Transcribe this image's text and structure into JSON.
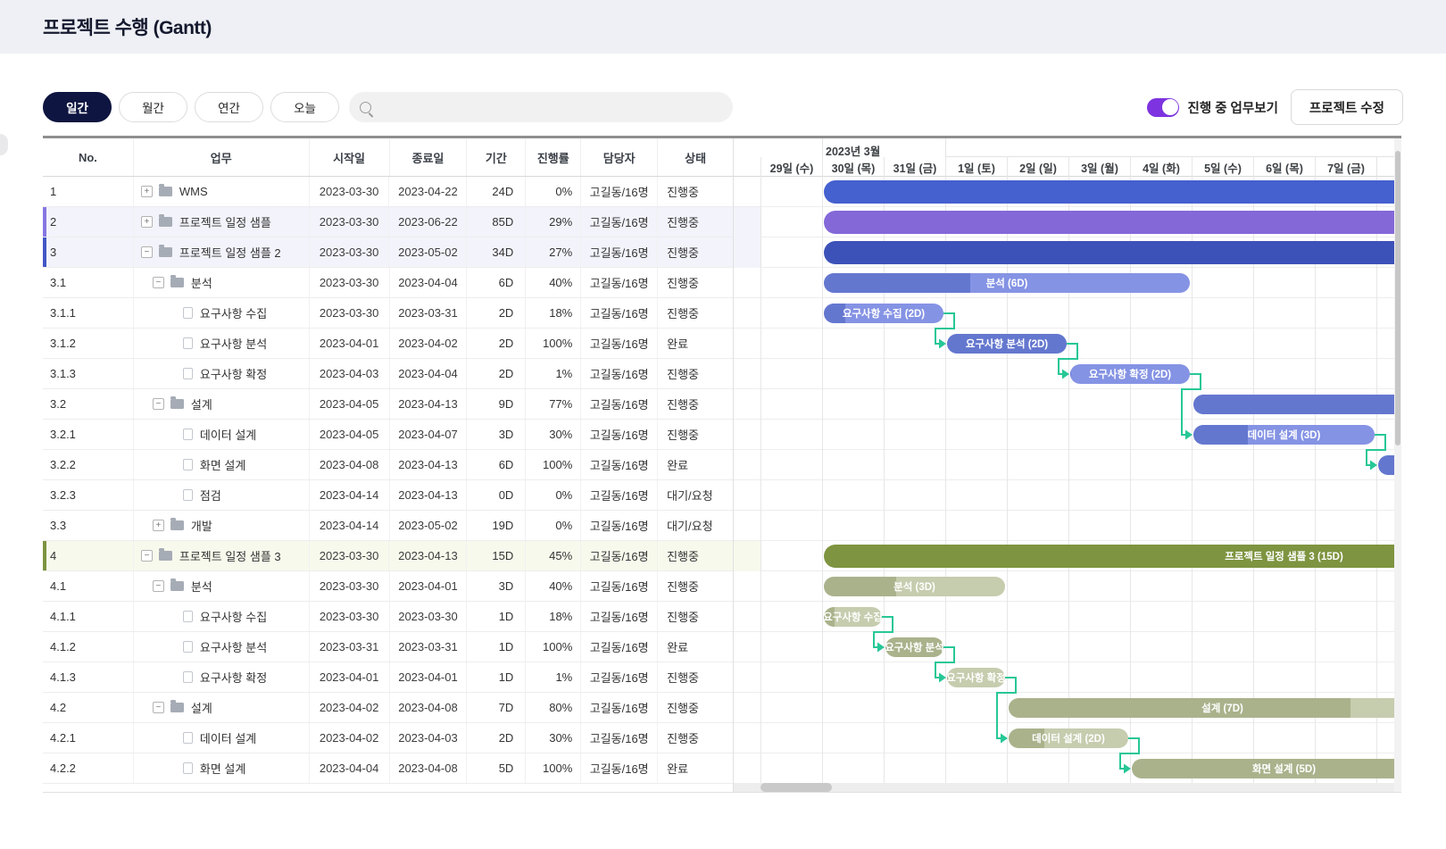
{
  "header": {
    "title": "프로젝트 수행 (Gantt)"
  },
  "toolbar": {
    "view_buttons": [
      {
        "id": "daily",
        "label": "일간",
        "active": true
      },
      {
        "id": "monthly",
        "label": "월간",
        "active": false
      },
      {
        "id": "yearly",
        "label": "연간",
        "active": false
      },
      {
        "id": "today",
        "label": "오늘",
        "active": false
      }
    ],
    "search_value": "",
    "toggle_label": "진행 중 업무보기",
    "toggle_on": true,
    "toggle_color": "#7d33e0",
    "edit_button": "프로젝트 수정"
  },
  "table": {
    "columns": [
      "No.",
      "업무",
      "시작일",
      "종료일",
      "기간",
      "진행률",
      "담당자",
      "상태"
    ],
    "rows": [
      {
        "no": "1",
        "name": "WMS",
        "level": 1,
        "expand": "+",
        "icon": "folder",
        "start": "2023-03-30",
        "end": "2023-04-22",
        "dur": "24D",
        "progress": "0%",
        "assignee": "고길동/16명",
        "status": "진행중",
        "tint": null,
        "accent": null
      },
      {
        "no": "2",
        "name": "프로젝트 일정 샘플",
        "level": 1,
        "expand": "+",
        "icon": "folder",
        "start": "2023-03-30",
        "end": "2023-06-22",
        "dur": "85D",
        "progress": "29%",
        "assignee": "고길동/16명",
        "status": "진행중",
        "tint": "#f3f3fb",
        "accent": "#8677e2"
      },
      {
        "no": "3",
        "name": "프로젝트 일정 샘플 2",
        "level": 1,
        "expand": "-",
        "icon": "folder",
        "start": "2023-03-30",
        "end": "2023-05-02",
        "dur": "34D",
        "progress": "27%",
        "assignee": "고길동/16명",
        "status": "진행중",
        "tint": "#f3f3fb",
        "accent": "#4356c6"
      },
      {
        "no": "3.1",
        "name": "분석",
        "level": 2,
        "expand": "-",
        "icon": "folder",
        "start": "2023-03-30",
        "end": "2023-04-04",
        "dur": "6D",
        "progress": "40%",
        "assignee": "고길동/16명",
        "status": "진행중",
        "tint": null,
        "accent": null
      },
      {
        "no": "3.1.1",
        "name": "요구사항 수집",
        "level": 3,
        "expand": null,
        "icon": "doc",
        "start": "2023-03-30",
        "end": "2023-03-31",
        "dur": "2D",
        "progress": "18%",
        "assignee": "고길동/16명",
        "status": "진행중",
        "tint": null,
        "accent": null
      },
      {
        "no": "3.1.2",
        "name": "요구사항 분석",
        "level": 3,
        "expand": null,
        "icon": "doc",
        "start": "2023-04-01",
        "end": "2023-04-02",
        "dur": "2D",
        "progress": "100%",
        "assignee": "고길동/16명",
        "status": "완료",
        "tint": null,
        "accent": null
      },
      {
        "no": "3.1.3",
        "name": "요구사항 확정",
        "level": 3,
        "expand": null,
        "icon": "doc",
        "start": "2023-04-03",
        "end": "2023-04-04",
        "dur": "2D",
        "progress": "1%",
        "assignee": "고길동/16명",
        "status": "진행중",
        "tint": null,
        "accent": null
      },
      {
        "no": "3.2",
        "name": "설계",
        "level": 2,
        "expand": "-",
        "icon": "folder",
        "start": "2023-04-05",
        "end": "2023-04-13",
        "dur": "9D",
        "progress": "77%",
        "assignee": "고길동/16명",
        "status": "진행중",
        "tint": null,
        "accent": null
      },
      {
        "no": "3.2.1",
        "name": "데이터 설계",
        "level": 3,
        "expand": null,
        "icon": "doc",
        "start": "2023-04-05",
        "end": "2023-04-07",
        "dur": "3D",
        "progress": "30%",
        "assignee": "고길동/16명",
        "status": "진행중",
        "tint": null,
        "accent": null
      },
      {
        "no": "3.2.2",
        "name": "화면 설계",
        "level": 3,
        "expand": null,
        "icon": "doc",
        "start": "2023-04-08",
        "end": "2023-04-13",
        "dur": "6D",
        "progress": "100%",
        "assignee": "고길동/16명",
        "status": "완료",
        "tint": null,
        "accent": null
      },
      {
        "no": "3.2.3",
        "name": "점검",
        "level": 3,
        "expand": null,
        "icon": "doc",
        "start": "2023-04-14",
        "end": "2023-04-13",
        "dur": "0D",
        "progress": "0%",
        "assignee": "고길동/16명",
        "status": "대기/요청",
        "tint": null,
        "accent": null
      },
      {
        "no": "3.3",
        "name": "개발",
        "level": 2,
        "expand": "+",
        "icon": "folder",
        "start": "2023-04-14",
        "end": "2023-05-02",
        "dur": "19D",
        "progress": "0%",
        "assignee": "고길동/16명",
        "status": "대기/요청",
        "tint": null,
        "accent": null
      },
      {
        "no": "4",
        "name": "프로젝트 일정 샘플 3",
        "level": 1,
        "expand": "-",
        "icon": "folder",
        "start": "2023-03-30",
        "end": "2023-04-13",
        "dur": "15D",
        "progress": "45%",
        "assignee": "고길동/16명",
        "status": "진행중",
        "tint": "#f7f9ec",
        "accent": "#7d9340"
      },
      {
        "no": "4.1",
        "name": "분석",
        "level": 2,
        "expand": "-",
        "icon": "folder",
        "start": "2023-03-30",
        "end": "2023-04-01",
        "dur": "3D",
        "progress": "40%",
        "assignee": "고길동/16명",
        "status": "진행중",
        "tint": null,
        "accent": null
      },
      {
        "no": "4.1.1",
        "name": "요구사항 수집",
        "level": 3,
        "expand": null,
        "icon": "doc",
        "start": "2023-03-30",
        "end": "2023-03-30",
        "dur": "1D",
        "progress": "18%",
        "assignee": "고길동/16명",
        "status": "진행중",
        "tint": null,
        "accent": null
      },
      {
        "no": "4.1.2",
        "name": "요구사항 분석",
        "level": 3,
        "expand": null,
        "icon": "doc",
        "start": "2023-03-31",
        "end": "2023-03-31",
        "dur": "1D",
        "progress": "100%",
        "assignee": "고길동/16명",
        "status": "완료",
        "tint": null,
        "accent": null
      },
      {
        "no": "4.1.3",
        "name": "요구사항 확정",
        "level": 3,
        "expand": null,
        "icon": "doc",
        "start": "2023-04-01",
        "end": "2023-04-01",
        "dur": "1D",
        "progress": "1%",
        "assignee": "고길동/16명",
        "status": "진행중",
        "tint": null,
        "accent": null
      },
      {
        "no": "4.2",
        "name": "설계",
        "level": 2,
        "expand": "-",
        "icon": "folder",
        "start": "2023-04-02",
        "end": "2023-04-08",
        "dur": "7D",
        "progress": "80%",
        "assignee": "고길동/16명",
        "status": "진행중",
        "tint": null,
        "accent": null
      },
      {
        "no": "4.2.1",
        "name": "데이터 설계",
        "level": 3,
        "expand": null,
        "icon": "doc",
        "start": "2023-04-02",
        "end": "2023-04-03",
        "dur": "2D",
        "progress": "30%",
        "assignee": "고길동/16명",
        "status": "진행중",
        "tint": null,
        "accent": null
      },
      {
        "no": "4.2.2",
        "name": "화면 설계",
        "level": 3,
        "expand": null,
        "icon": "doc",
        "start": "2023-04-04",
        "end": "2023-04-08",
        "dur": "5D",
        "progress": "100%",
        "assignee": "고길동/16명",
        "status": "완료",
        "tint": null,
        "accent": null
      }
    ]
  },
  "gantt": {
    "month_label": "2023년 3월",
    "days": [
      "29일 (수)",
      "30일 (목)",
      "31일 (금)",
      "1일 (토)",
      "2일 (일)",
      "3일 (월)",
      "4일 (화)",
      "5일 (수)",
      "6일 (목)",
      "7일 (금)"
    ],
    "colors": {
      "blue_light": "#8593e4",
      "blue_dark": "#6477cf",
      "green_light": "#c6ccae",
      "green_dark": "#aab28c",
      "link": "#27c796"
    },
    "bars": [
      {
        "row": 0,
        "start": 1,
        "days": 24,
        "kind": "solid",
        "color": "#4560cf",
        "thick": true,
        "label": ""
      },
      {
        "row": 1,
        "start": 1,
        "days": 85,
        "kind": "solid",
        "color": "#8468d8",
        "thick": true,
        "label": ""
      },
      {
        "row": 2,
        "start": 1,
        "days": 34,
        "kind": "solid",
        "color": "#3d52b8",
        "thick": true,
        "label": ""
      },
      {
        "row": 3,
        "start": 1,
        "days": 6,
        "kind": "split",
        "family": "blue",
        "progress": 40,
        "label": "분석 (6D)"
      },
      {
        "row": 4,
        "start": 1,
        "days": 2,
        "kind": "split",
        "family": "blue",
        "progress": 18,
        "label": "요구사항 수집 (2D)"
      },
      {
        "row": 5,
        "start": 3,
        "days": 2,
        "kind": "split",
        "family": "blue",
        "progress": 100,
        "label": "요구사항 분석 (2D)"
      },
      {
        "row": 6,
        "start": 5,
        "days": 2,
        "kind": "split",
        "family": "blue",
        "progress": 1,
        "label": "요구사항 확정 (2D)"
      },
      {
        "row": 7,
        "start": 7,
        "days": 9,
        "kind": "split",
        "family": "blue",
        "progress": 77,
        "label": ""
      },
      {
        "row": 8,
        "start": 7,
        "days": 3,
        "kind": "split",
        "family": "blue",
        "progress": 30,
        "label": "데이터 설계 (3D)"
      },
      {
        "row": 9,
        "start": 10,
        "days": 6,
        "kind": "split",
        "family": "blue",
        "progress": 100,
        "label": ""
      },
      {
        "row": 12,
        "start": 1,
        "days": 15,
        "kind": "solid",
        "color": "#7e9440",
        "thick": true,
        "label": "프로젝트 일정 샘플 3 (15D)"
      },
      {
        "row": 13,
        "start": 1,
        "days": 3,
        "kind": "split",
        "family": "green",
        "progress": 40,
        "label": "분석 (3D)"
      },
      {
        "row": 14,
        "start": 1,
        "days": 1,
        "kind": "split",
        "family": "green",
        "progress": 18,
        "label": "요구사항 수집"
      },
      {
        "row": 15,
        "start": 2,
        "days": 1,
        "kind": "split",
        "family": "green",
        "progress": 100,
        "label": "요구사항 분석"
      },
      {
        "row": 16,
        "start": 3,
        "days": 1,
        "kind": "split",
        "family": "green",
        "progress": 1,
        "label": "요구사항 확정"
      },
      {
        "row": 17,
        "start": 4,
        "days": 7,
        "kind": "split",
        "family": "green",
        "progress": 80,
        "label": "설계 (7D)"
      },
      {
        "row": 18,
        "start": 4,
        "days": 2,
        "kind": "split",
        "family": "green",
        "progress": 30,
        "label": "데이터 설계 (2D)"
      },
      {
        "row": 19,
        "start": 6,
        "days": 5,
        "kind": "split",
        "family": "green",
        "progress": 100,
        "label": "화면 설계 (5D)"
      }
    ],
    "links": [
      [
        4,
        5
      ],
      [
        5,
        6
      ],
      [
        6,
        8
      ],
      [
        8,
        9
      ],
      [
        12,
        13
      ],
      [
        13,
        14
      ],
      [
        14,
        16
      ],
      [
        16,
        17
      ]
    ]
  }
}
